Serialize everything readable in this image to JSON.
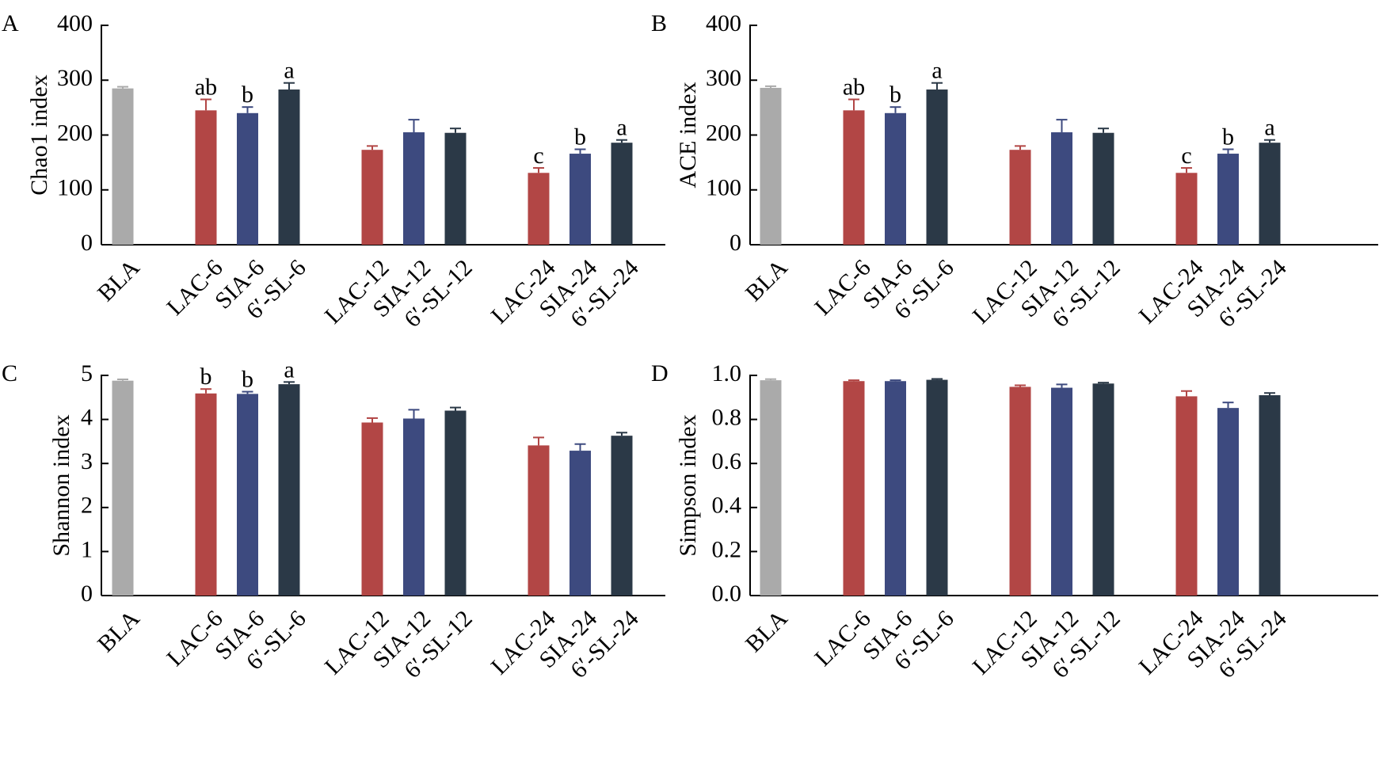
{
  "colors": {
    "BLA": "#aaaaaa",
    "LAC": "#b24645",
    "SIA": "#3d4a7f",
    "SL": "#2b3947",
    "axis": "#000000"
  },
  "chart_data": [
    {
      "type": "bar",
      "panel": "A",
      "ylabel": "Chao1 index",
      "xlabel": "",
      "ylim": [
        0,
        400
      ],
      "yticks": [
        "0",
        "100",
        "200",
        "300",
        "400"
      ],
      "tick_values": [
        0,
        100,
        200,
        300,
        400
      ],
      "categories": [
        "BLA",
        "LAC-6",
        "SIA-6",
        "6′-SL-6",
        "LAC-12",
        "SIA-12",
        "6′-SL-12",
        "LAC-24",
        "SIA-24",
        "6′-SL-24"
      ],
      "color_keys": [
        "BLA",
        "LAC",
        "SIA",
        "SL",
        "LAC",
        "SIA",
        "SL",
        "LAC",
        "SIA",
        "SL"
      ],
      "values": [
        285,
        245,
        240,
        283,
        173,
        205,
        204,
        131,
        166,
        186
      ],
      "errors": [
        3,
        20,
        11,
        12,
        7,
        23,
        8,
        9,
        8,
        5
      ],
      "annotations": [
        "",
        "ab",
        "b",
        "a",
        "",
        "",
        "",
        "c",
        "b",
        "a"
      ],
      "grid": false
    },
    {
      "type": "bar",
      "panel": "B",
      "ylabel": "ACE index",
      "xlabel": "",
      "ylim": [
        0,
        400
      ],
      "yticks": [
        "0",
        "100",
        "200",
        "300",
        "400"
      ],
      "tick_values": [
        0,
        100,
        200,
        300,
        400
      ],
      "categories": [
        "BLA",
        "LAC-6",
        "SIA-6",
        "6′-SL-6",
        "LAC-12",
        "SIA-12",
        "6′-SL-12",
        "LAC-24",
        "SIA-24",
        "6′-SL-24"
      ],
      "color_keys": [
        "BLA",
        "LAC",
        "SIA",
        "SL",
        "LAC",
        "SIA",
        "SL",
        "LAC",
        "SIA",
        "SL"
      ],
      "values": [
        286,
        245,
        240,
        283,
        173,
        205,
        204,
        131,
        166,
        186
      ],
      "errors": [
        3,
        20,
        11,
        12,
        7,
        23,
        8,
        9,
        8,
        5
      ],
      "annotations": [
        "",
        "ab",
        "b",
        "a",
        "",
        "",
        "",
        "c",
        "b",
        "a"
      ],
      "grid": false
    },
    {
      "type": "bar",
      "panel": "C",
      "ylabel": "Shannon index",
      "xlabel": "",
      "ylim": [
        0,
        5
      ],
      "yticks": [
        "0",
        "1",
        "2",
        "3",
        "4",
        "5"
      ],
      "tick_values": [
        0,
        1,
        2,
        3,
        4,
        5
      ],
      "categories": [
        "BLA",
        "LAC-6",
        "SIA-6",
        "6′-SL-6",
        "LAC-12",
        "SIA-12",
        "6′-SL-12",
        "LAC-24",
        "SIA-24",
        "6′-SL-24"
      ],
      "color_keys": [
        "BLA",
        "LAC",
        "SIA",
        "SL",
        "LAC",
        "SIA",
        "SL",
        "LAC",
        "SIA",
        "SL"
      ],
      "values": [
        4.88,
        4.59,
        4.58,
        4.8,
        3.93,
        4.02,
        4.2,
        3.41,
        3.29,
        3.63
      ],
      "errors": [
        0.03,
        0.1,
        0.05,
        0.05,
        0.1,
        0.2,
        0.07,
        0.18,
        0.15,
        0.07
      ],
      "annotations": [
        "",
        "b",
        "b",
        "a",
        "",
        "",
        "",
        "",
        "",
        ""
      ],
      "grid": false
    },
    {
      "type": "bar",
      "panel": "D",
      "ylabel": "Simpson index",
      "xlabel": "",
      "ylim": [
        0,
        1
      ],
      "yticks": [
        "0.0",
        "0.2",
        "0.4",
        "0.6",
        "0.8",
        "1.0"
      ],
      "tick_values": [
        0,
        0.2,
        0.4,
        0.6,
        0.8,
        1.0
      ],
      "categories": [
        "BLA",
        "LAC-6",
        "SIA-6",
        "6′-SL-6",
        "LAC-12",
        "SIA-12",
        "6′-SL-12",
        "LAC-24",
        "SIA-24",
        "6′-SL-24"
      ],
      "color_keys": [
        "BLA",
        "LAC",
        "SIA",
        "SL",
        "LAC",
        "SIA",
        "SL",
        "LAC",
        "SIA",
        "SL"
      ],
      "values": [
        0.978,
        0.974,
        0.974,
        0.98,
        0.948,
        0.944,
        0.963,
        0.905,
        0.852,
        0.91
      ],
      "errors": [
        0.005,
        0.004,
        0.004,
        0.004,
        0.007,
        0.015,
        0.004,
        0.024,
        0.025,
        0.01
      ],
      "annotations": [
        "",
        "",
        "",
        "",
        "",
        "",
        "",
        "",
        "",
        ""
      ],
      "grid": false
    }
  ]
}
